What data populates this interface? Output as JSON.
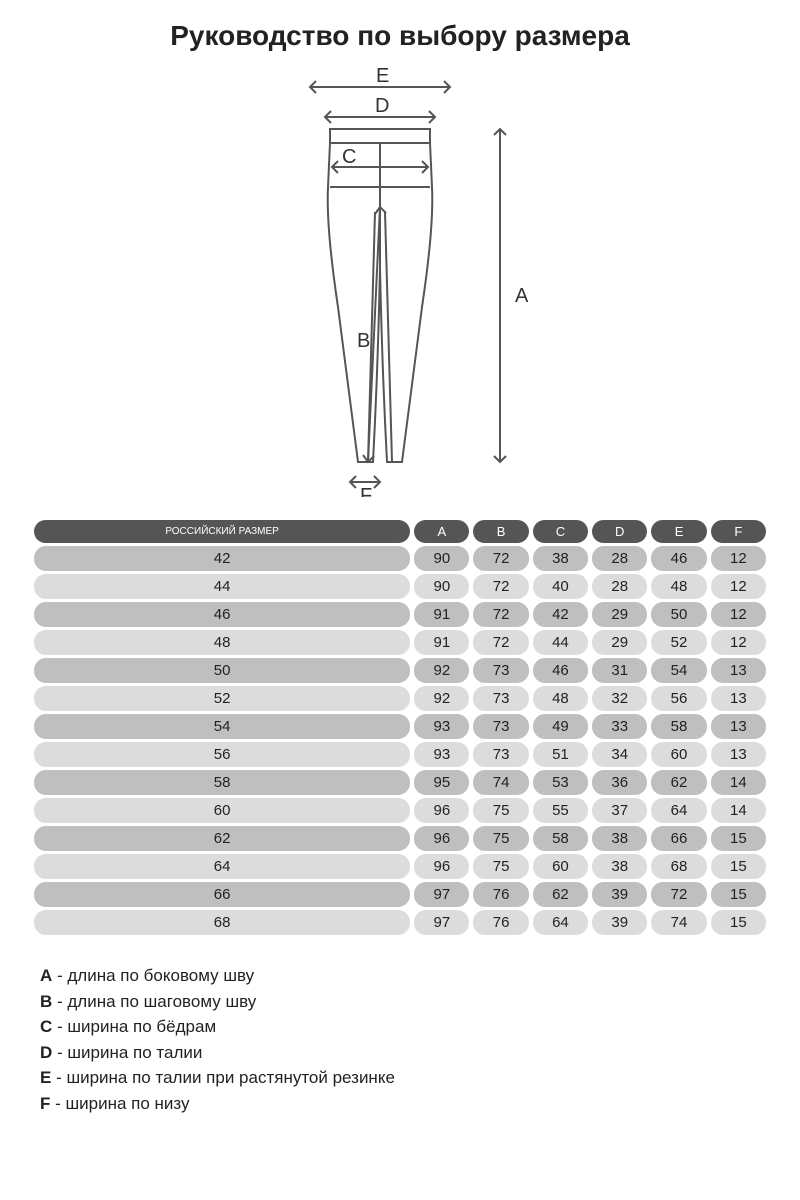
{
  "title": "Руководство по выбору размера",
  "diagram": {
    "labels": {
      "A": "A",
      "B": "B",
      "C": "C",
      "D": "D",
      "E": "E",
      "F": "F"
    },
    "stroke": "#555",
    "stroke_width": 2
  },
  "table": {
    "header_bg": "#555555",
    "header_color": "#ffffff",
    "row_dark_bg": "#bfbfbf",
    "row_light_bg": "#dcdcdc",
    "columns": [
      "РОССИЙСКИЙ РАЗМЕР",
      "A",
      "B",
      "C",
      "D",
      "E",
      "F"
    ],
    "rows": [
      [
        "42",
        "90",
        "72",
        "38",
        "28",
        "46",
        "12"
      ],
      [
        "44",
        "90",
        "72",
        "40",
        "28",
        "48",
        "12"
      ],
      [
        "46",
        "91",
        "72",
        "42",
        "29",
        "50",
        "12"
      ],
      [
        "48",
        "91",
        "72",
        "44",
        "29",
        "52",
        "12"
      ],
      [
        "50",
        "92",
        "73",
        "46",
        "31",
        "54",
        "13"
      ],
      [
        "52",
        "92",
        "73",
        "48",
        "32",
        "56",
        "13"
      ],
      [
        "54",
        "93",
        "73",
        "49",
        "33",
        "58",
        "13"
      ],
      [
        "56",
        "93",
        "73",
        "51",
        "34",
        "60",
        "13"
      ],
      [
        "58",
        "95",
        "74",
        "53",
        "36",
        "62",
        "14"
      ],
      [
        "60",
        "96",
        "75",
        "55",
        "37",
        "64",
        "14"
      ],
      [
        "62",
        "96",
        "75",
        "58",
        "38",
        "66",
        "15"
      ],
      [
        "64",
        "96",
        "75",
        "60",
        "38",
        "68",
        "15"
      ],
      [
        "66",
        "97",
        "76",
        "62",
        "39",
        "72",
        "15"
      ],
      [
        "68",
        "97",
        "76",
        "64",
        "39",
        "74",
        "15"
      ]
    ]
  },
  "legend": [
    {
      "key": "A",
      "text": "длина по боковому шву"
    },
    {
      "key": "B",
      "text": "длина по шаговому шву"
    },
    {
      "key": "C",
      "text": "ширина по бёдрам"
    },
    {
      "key": "D",
      "text": "ширина по талии"
    },
    {
      "key": "E",
      "text": "ширина по талии при растянутой резинке"
    },
    {
      "key": "F",
      "text": "ширина по низу"
    }
  ]
}
